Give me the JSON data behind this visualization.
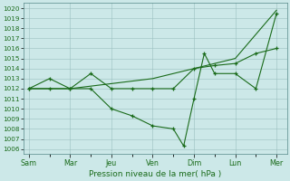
{
  "title": "Pression niveau de la mer( hPa )",
  "background_color": "#cce8e8",
  "grid_color": "#9bbfbf",
  "line_color": "#1a6b1a",
  "ylim": [
    1005.5,
    1020.5
  ],
  "yticks": [
    1006,
    1007,
    1008,
    1009,
    1010,
    1011,
    1012,
    1013,
    1014,
    1015,
    1016,
    1017,
    1018,
    1019,
    1020
  ],
  "day_labels": [
    "Sam",
    "Mar",
    "Jeu",
    "Ven",
    "Dim",
    "Lun",
    "Mer"
  ],
  "day_x": [
    0,
    8,
    16,
    24,
    32,
    40,
    48
  ],
  "xlim": [
    -1,
    50
  ],
  "series1_x": [
    0,
    4,
    8,
    12,
    16,
    20,
    24,
    28,
    30,
    32,
    34,
    36,
    40,
    44,
    48
  ],
  "series1_y": [
    1012.0,
    1013.0,
    1012.0,
    1012.0,
    1010.0,
    1009.3,
    1008.3,
    1008.0,
    1006.3,
    1011.0,
    1015.5,
    1013.5,
    1013.5,
    1012.0,
    1019.5
  ],
  "series2_x": [
    0,
    4,
    8,
    12,
    16,
    20,
    24,
    28,
    32,
    36,
    40,
    44,
    48
  ],
  "series2_y": [
    1012.0,
    1012.0,
    1012.0,
    1013.5,
    1012.0,
    1012.0,
    1012.0,
    1012.0,
    1014.0,
    1014.3,
    1014.5,
    1015.5,
    1016.0
  ],
  "series3_x": [
    0,
    8,
    16,
    24,
    32,
    40,
    48
  ],
  "series3_y": [
    1012.0,
    1012.0,
    1012.5,
    1013.0,
    1014.0,
    1015.0,
    1019.8
  ]
}
